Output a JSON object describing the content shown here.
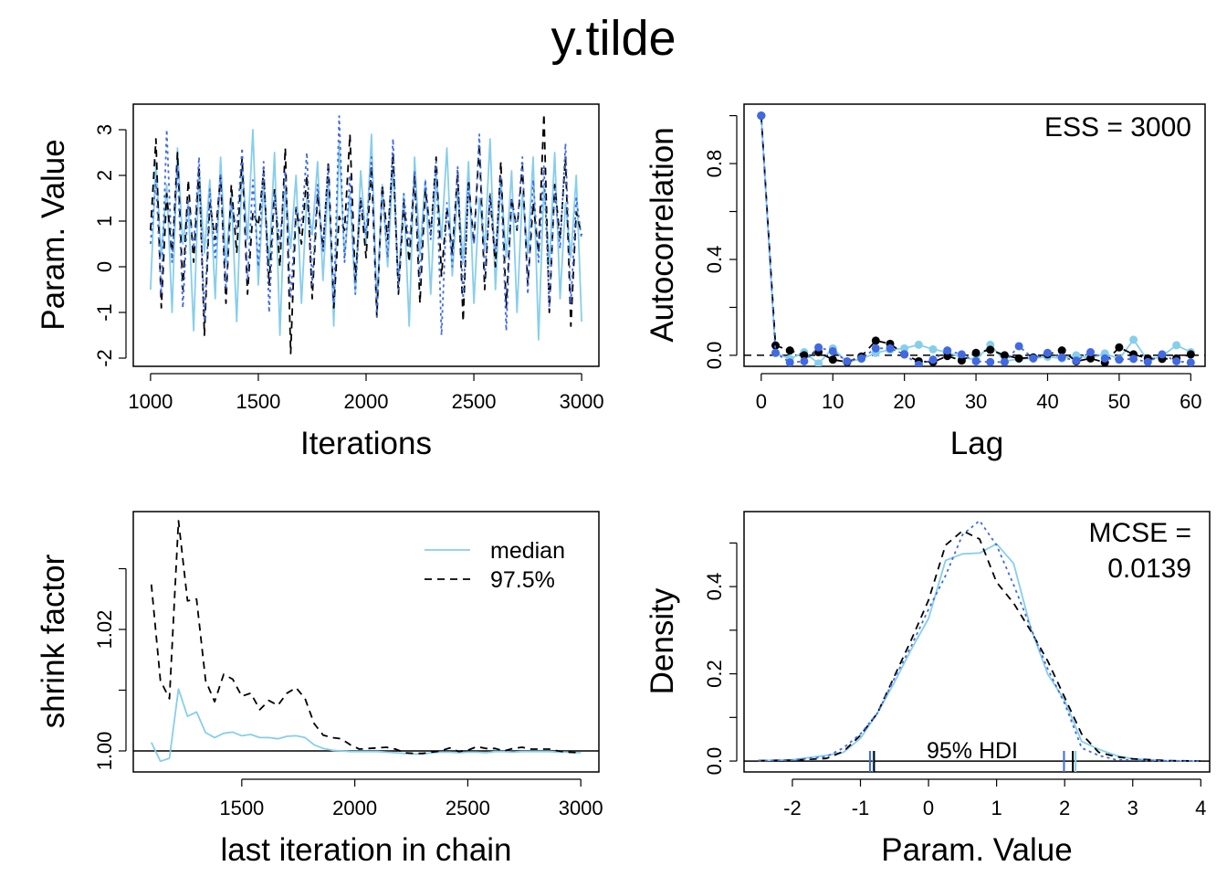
{
  "title": "y.tilde",
  "colors": {
    "chain1": "#87CEEB",
    "chain2": "#000000",
    "chain3": "#4169E1"
  },
  "chart_data": [
    {
      "type": "line",
      "panel": "trace",
      "xlabel": "Iterations",
      "ylabel": "Param. Value",
      "xlim": [
        920,
        3080
      ],
      "ylim": [
        -2.18,
        3.56
      ],
      "x_ticks": [
        1000,
        1500,
        2000,
        2500,
        3000
      ],
      "x_tick_labels": [
        "1000",
        "1500",
        "2000",
        "2500",
        "3000"
      ],
      "y_ticks": [
        -2,
        -1,
        0,
        1,
        2,
        3
      ],
      "y_tick_labels": [
        "-2",
        "-1",
        "0",
        "1",
        "2",
        "3"
      ],
      "x_start": 1000,
      "x_step": 25,
      "series": [
        {
          "color": "#87CEEB",
          "style": "solid",
          "values": [
            -0.5,
            2.3,
            0.2,
            1.8,
            -1.0,
            2.6,
            0.5,
            1.4,
            -1.4,
            2.1,
            0.3,
            1.9,
            -0.7,
            2.4,
            0.1,
            1.6,
            -1.2,
            2.2,
            0.6,
            3.0,
            -0.4,
            1.8,
            0.0,
            2.5,
            -1.5,
            1.7,
            0.4,
            2.0,
            -0.8,
            1.5,
            0.7,
            2.3,
            -0.3,
            1.9,
            -1.3,
            2.7,
            0.2,
            1.6,
            -0.6,
            2.1,
            0.5,
            2.9,
            -0.9,
            1.8,
            0.0,
            2.2,
            -0.4,
            1.6,
            -1.3,
            2.4,
            0.3,
            1.9,
            -0.6,
            2.0,
            0.6,
            2.6,
            -0.2,
            1.7,
            0.1,
            2.3,
            -0.8,
            1.5,
            0.4,
            2.8,
            -0.5,
            1.9,
            0.2,
            2.1,
            -1.0,
            1.6,
            0.3,
            2.4,
            -1.6,
            1.8,
            0.0,
            2.5,
            -0.7,
            1.4,
            0.2,
            2.0,
            -1.2
          ]
        },
        {
          "color": "#000000",
          "style": "dashed",
          "values": [
            0.8,
            2.8,
            -0.9,
            1.6,
            0.2,
            2.5,
            -0.5,
            1.9,
            0.1,
            2.2,
            -1.5,
            1.4,
            0.6,
            2.0,
            -0.8,
            1.8,
            0.3,
            2.4,
            -0.6,
            1.2,
            0.9,
            2.1,
            -0.4,
            1.7,
            0.0,
            2.6,
            -1.9,
            1.3,
            0.5,
            2.0,
            -0.7,
            1.6,
            0.4,
            2.3,
            -0.9,
            1.1,
            0.8,
            2.9,
            -0.3,
            1.5,
            0.2,
            2.2,
            -1.1,
            1.8,
            0.6,
            2.5,
            -0.6,
            1.4,
            0.1,
            2.0,
            -0.8,
            1.7,
            0.7,
            2.4,
            -0.2,
            1.3,
            0.3,
            2.1,
            -1.2,
            1.9,
            0.5,
            2.7,
            -0.5,
            1.6,
            0.0,
            2.3,
            -0.9,
            1.5,
            0.8,
            2.2,
            -0.4,
            1.4,
            0.3,
            3.35,
            -1.0,
            1.8,
            0.6,
            2.4,
            -1.3,
            1.2,
            0.7
          ]
        },
        {
          "color": "#4169E1",
          "style": "dotted",
          "values": [
            0.5,
            1.9,
            -0.6,
            3.0,
            0.1,
            2.2,
            -0.9,
            1.5,
            0.4,
            2.4,
            -1.2,
            1.7,
            0.2,
            2.0,
            -0.5,
            1.4,
            0.8,
            2.6,
            -0.3,
            1.9,
            0.0,
            2.3,
            -1.0,
            1.6,
            0.5,
            2.1,
            -0.7,
            1.3,
            0.9,
            2.5,
            -0.4,
            1.8,
            0.3,
            2.2,
            -0.8,
            3.3,
            0.1,
            2.0,
            -0.6,
            1.5,
            0.7,
            2.4,
            -1.1,
            1.7,
            0.2,
            2.8,
            -0.5,
            1.6,
            0.4,
            2.1,
            -0.3,
            1.9,
            0.6,
            2.3,
            -1.5,
            1.4,
            0.0,
            2.2,
            -0.7,
            1.8,
            0.5,
            2.9,
            -0.2,
            1.6,
            0.3,
            2.0,
            -1.4,
            1.5,
            0.8,
            2.4,
            -0.6,
            1.9,
            0.1,
            2.2,
            -0.9,
            1.7,
            0.4,
            2.7,
            -0.8,
            1.5,
            0.6
          ]
        }
      ]
    },
    {
      "type": "line",
      "panel": "autocorrelation",
      "xlabel": "Lag",
      "ylabel": "Autocorrelation",
      "annotation": "ESS = 3000",
      "xlim": [
        -2.4,
        62
      ],
      "ylim": [
        -0.046,
        1.048
      ],
      "x_ticks": [
        0,
        10,
        20,
        30,
        40,
        50,
        60
      ],
      "x_tick_labels": [
        "0",
        "10",
        "20",
        "30",
        "40",
        "50",
        "60"
      ],
      "y_ticks": [
        0,
        0.2,
        0.4,
        0.6,
        0.8,
        1.0
      ],
      "y_tick_labels": [
        "0.0",
        "",
        "0.4",
        "",
        "0.8",
        ""
      ],
      "lags": [
        0,
        2,
        4,
        6,
        8,
        10,
        12,
        14,
        16,
        18,
        20,
        22,
        24,
        26,
        28,
        30,
        32,
        34,
        36,
        38,
        40,
        42,
        44,
        46,
        48,
        50,
        52,
        54,
        56,
        58,
        60
      ],
      "series": [
        {
          "color": "#87CEEB",
          "style": "solid",
          "values": [
            1.0,
            0.01,
            -0.015,
            0.013,
            -0.034,
            0.029,
            -0.028,
            -0.015,
            0.01,
            0.023,
            0.029,
            0.044,
            0.025,
            0.013,
            -0.009,
            -0.018,
            0.044,
            -0.025,
            -0.015,
            -0.013,
            -0.006,
            -0.013,
            0.0,
            -0.013,
            0.008,
            -0.015,
            0.065,
            -0.022,
            -0.003,
            0.042,
            0.013
          ]
        },
        {
          "color": "#000000",
          "style": "dashed",
          "values": [
            1.0,
            0.041,
            0.02,
            0.0,
            0.013,
            -0.018,
            -0.028,
            -0.005,
            0.061,
            0.048,
            0.004,
            -0.025,
            -0.028,
            -0.003,
            -0.022,
            0.01,
            0.023,
            0.0,
            -0.013,
            -0.009,
            0.004,
            0.02,
            -0.025,
            -0.013,
            -0.03,
            0.033,
            0.004,
            -0.013,
            -0.015,
            -0.013,
            0.004
          ]
        },
        {
          "color": "#4169E1",
          "style": "dotted",
          "values": [
            1.0,
            0.01,
            -0.03,
            -0.025,
            0.033,
            0.017,
            -0.025,
            -0.013,
            0.029,
            0.029,
            0.004,
            -0.04,
            -0.018,
            0.02,
            0.004,
            -0.025,
            -0.028,
            -0.028,
            0.038,
            -0.013,
            0.01,
            -0.009,
            -0.022,
            0.013,
            -0.013,
            -0.018,
            -0.015,
            -0.028,
            0.004,
            -0.025,
            -0.03
          ]
        }
      ]
    },
    {
      "type": "line",
      "panel": "shrink-factor",
      "xlabel": "last iteration in chain",
      "ylabel": "shrink factor",
      "xlim": [
        1020,
        3080
      ],
      "ylim": [
        0.99654,
        1.0394
      ],
      "x_ticks": [
        1500,
        2000,
        2500,
        3000
      ],
      "x_tick_labels": [
        "1500",
        "2000",
        "2500",
        "3000"
      ],
      "y_ticks": [
        1.0,
        1.01,
        1.02,
        1.03
      ],
      "y_tick_labels": [
        "1.00",
        "",
        "1.02",
        ""
      ],
      "reference_line": 1.0,
      "legend": {
        "position": "top-right",
        "entries": [
          "median",
          "97.5%"
        ]
      },
      "x": [
        1100,
        1140,
        1180,
        1220,
        1260,
        1300,
        1340,
        1380,
        1420,
        1460,
        1500,
        1540,
        1580,
        1620,
        1660,
        1700,
        1740,
        1780,
        1820,
        1860,
        1900,
        1940,
        1980,
        2020,
        2060,
        2100,
        2140,
        2180,
        2220,
        2260,
        2300,
        2340,
        2380,
        2420,
        2460,
        2500,
        2540,
        2580,
        2620,
        2660,
        2700,
        2740,
        2780,
        2820,
        2860,
        2900,
        2940,
        3000
      ],
      "series": [
        {
          "name": "median",
          "color": "#87CEEB",
          "style": "solid",
          "values": [
            1.0014,
            0.9983,
            0.9988,
            1.0102,
            1.0057,
            1.0064,
            1.003,
            1.0022,
            1.0029,
            1.0031,
            1.0025,
            1.0027,
            1.0022,
            1.0022,
            1.002,
            1.0024,
            1.0025,
            1.0022,
            1.001,
            1.0004,
            1.0001,
            1.0,
            0.9999,
            0.9999,
            0.9999,
            0.9999,
            0.9998,
            0.9997,
            0.9996,
            0.9995,
            0.9995,
            0.9997,
            0.9998,
            0.9998,
            0.9997,
            0.9998,
            0.9998,
            0.9997,
            0.9999,
            0.9999,
            0.9998,
            0.9999,
            0.9999,
            0.9999,
            0.9999,
            0.9998,
            0.9998,
            0.9997
          ]
        },
        {
          "name": "97.5%",
          "color": "#000000",
          "style": "dashed",
          "values": [
            1.0274,
            1.0116,
            1.0086,
            1.0379,
            1.0247,
            1.025,
            1.0116,
            1.0081,
            1.0126,
            1.0118,
            1.009,
            1.0095,
            1.0068,
            1.0083,
            1.0075,
            1.0095,
            1.0104,
            1.0086,
            1.0045,
            1.0026,
            1.0022,
            1.002,
            1.001,
            1.0003,
            1.0004,
            1.0005,
            1.0006,
            1.0003,
            0.9997,
            0.9996,
            0.9996,
            0.9998,
            1.0,
            1.0005,
            0.9999,
            1.0001,
            1.0007,
            1.0004,
            1.0004,
            1.0,
            1.0004,
            1.0006,
            1.0003,
            1.0003,
            1.0003,
            1.0,
            0.9998,
            0.9997
          ]
        }
      ]
    },
    {
      "type": "line",
      "panel": "density",
      "xlabel": "Param. Value",
      "ylabel": "Density",
      "annotation_lines": [
        "MCSE =",
        "0.0139"
      ],
      "hdi_label": "95% HDI",
      "xlim": [
        -2.71,
        4.13
      ],
      "ylim": [
        -0.025,
        0.572
      ],
      "x_ticks": [
        -2,
        -1,
        0,
        1,
        2,
        3,
        4
      ],
      "x_tick_labels": [
        "-2",
        "-1",
        "0",
        "1",
        "2",
        "3",
        "4"
      ],
      "y_ticks": [
        0,
        0.1,
        0.2,
        0.3,
        0.4,
        0.5
      ],
      "y_tick_labels": [
        "0.0",
        "",
        "0.2",
        "",
        "0.4",
        ""
      ],
      "x": [
        -2.5,
        -2,
        -1.5,
        -1.25,
        -1,
        -0.75,
        -0.5,
        -0.25,
        0,
        0.25,
        0.5,
        0.75,
        1,
        1.25,
        1.5,
        1.75,
        2,
        2.25,
        2.5,
        2.75,
        3,
        3.5,
        4
      ],
      "series": [
        {
          "color": "#87CEEB",
          "style": "solid",
          "hdi": [
            -0.81,
            2.16
          ],
          "values": [
            0.001,
            0.003,
            0.013,
            0.02,
            0.052,
            0.11,
            0.181,
            0.257,
            0.327,
            0.46,
            0.475,
            0.477,
            0.498,
            0.453,
            0.306,
            0.2,
            0.139,
            0.045,
            0.027,
            0.013,
            0.005,
            0.001,
            0.0
          ]
        },
        {
          "color": "#000000",
          "style": "dashed",
          "hdi": [
            -0.8,
            2.12
          ],
          "values": [
            0.001,
            0.002,
            0.006,
            0.022,
            0.059,
            0.11,
            0.195,
            0.279,
            0.369,
            0.495,
            0.528,
            0.509,
            0.41,
            0.362,
            0.299,
            0.23,
            0.146,
            0.062,
            0.02,
            0.01,
            0.005,
            0.001,
            0.0
          ]
        },
        {
          "color": "#4169E1",
          "style": "dotted",
          "hdi": [
            -0.86,
            1.99
          ],
          "values": [
            0.001,
            0.002,
            0.01,
            0.03,
            0.062,
            0.11,
            0.19,
            0.265,
            0.348,
            0.425,
            0.519,
            0.551,
            0.495,
            0.404,
            0.306,
            0.212,
            0.132,
            0.03,
            0.013,
            0.003,
            0.002,
            0.0,
            0.0
          ]
        }
      ]
    }
  ]
}
